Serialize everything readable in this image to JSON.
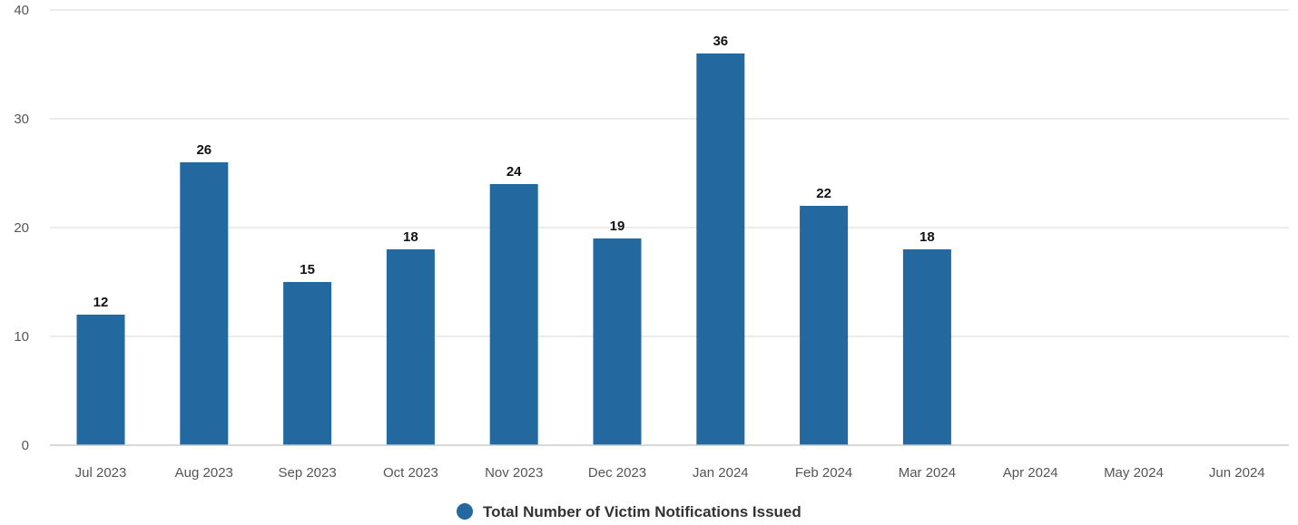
{
  "chart_data": {
    "type": "bar",
    "categories": [
      "Jul 2023",
      "Aug 2023",
      "Sep 2023",
      "Oct 2023",
      "Nov 2023",
      "Dec 2023",
      "Jan 2024",
      "Feb 2024",
      "Mar 2024",
      "Apr 2024",
      "May 2024",
      "Jun 2024"
    ],
    "series": [
      {
        "name": "Total Number of Victim Notifications Issued",
        "values": [
          12,
          26,
          15,
          18,
          24,
          19,
          36,
          22,
          18,
          null,
          null,
          null
        ],
        "color": "#2369a0"
      }
    ],
    "yticks": [
      0,
      10,
      20,
      30,
      40
    ],
    "ylim": [
      0,
      40
    ],
    "grid": true,
    "legend_position": "bottom-center",
    "data_labels": true,
    "colors": {
      "bar": "#2369a0",
      "grid": "#e6e6e6",
      "axis": "#cccccc"
    }
  }
}
